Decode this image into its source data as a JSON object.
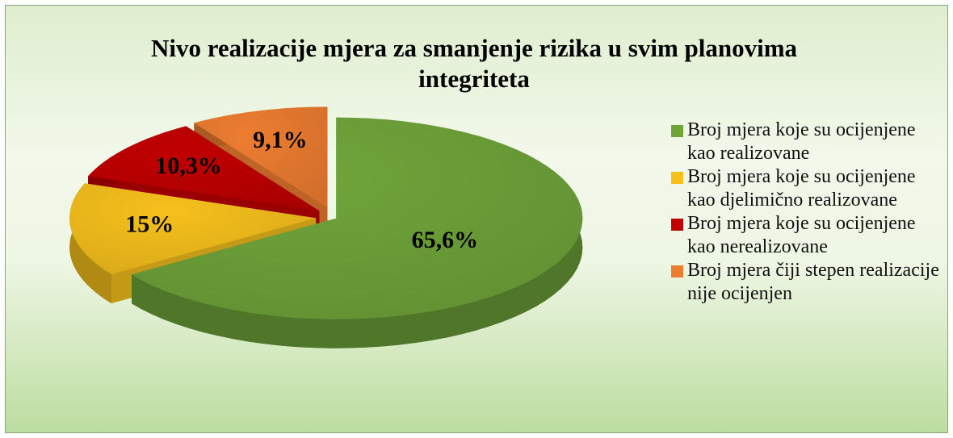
{
  "chart_data": {
    "type": "pie3d",
    "title": "Nivo realizacije mjera za smanjenje rizika u svim planovima integriteta",
    "categories": [
      "Broj mjera koje su ocijenjene kao realizovane",
      "Broj mjera koje su ocijenjene kao djelimično realizovane",
      "Broj mjera koje su ocijenjene kao nerealizovane",
      "Broj mjera čiji stepen realizacije nije ocijenjen"
    ],
    "values": [
      65.6,
      15,
      10.3,
      9.1
    ],
    "value_labels": [
      "65,6%",
      "15%",
      "10,3%",
      "9,1%"
    ],
    "colors": [
      "#6fa43a",
      "#f6c01c",
      "#c00000",
      "#ed7d31"
    ],
    "legend": "right"
  }
}
